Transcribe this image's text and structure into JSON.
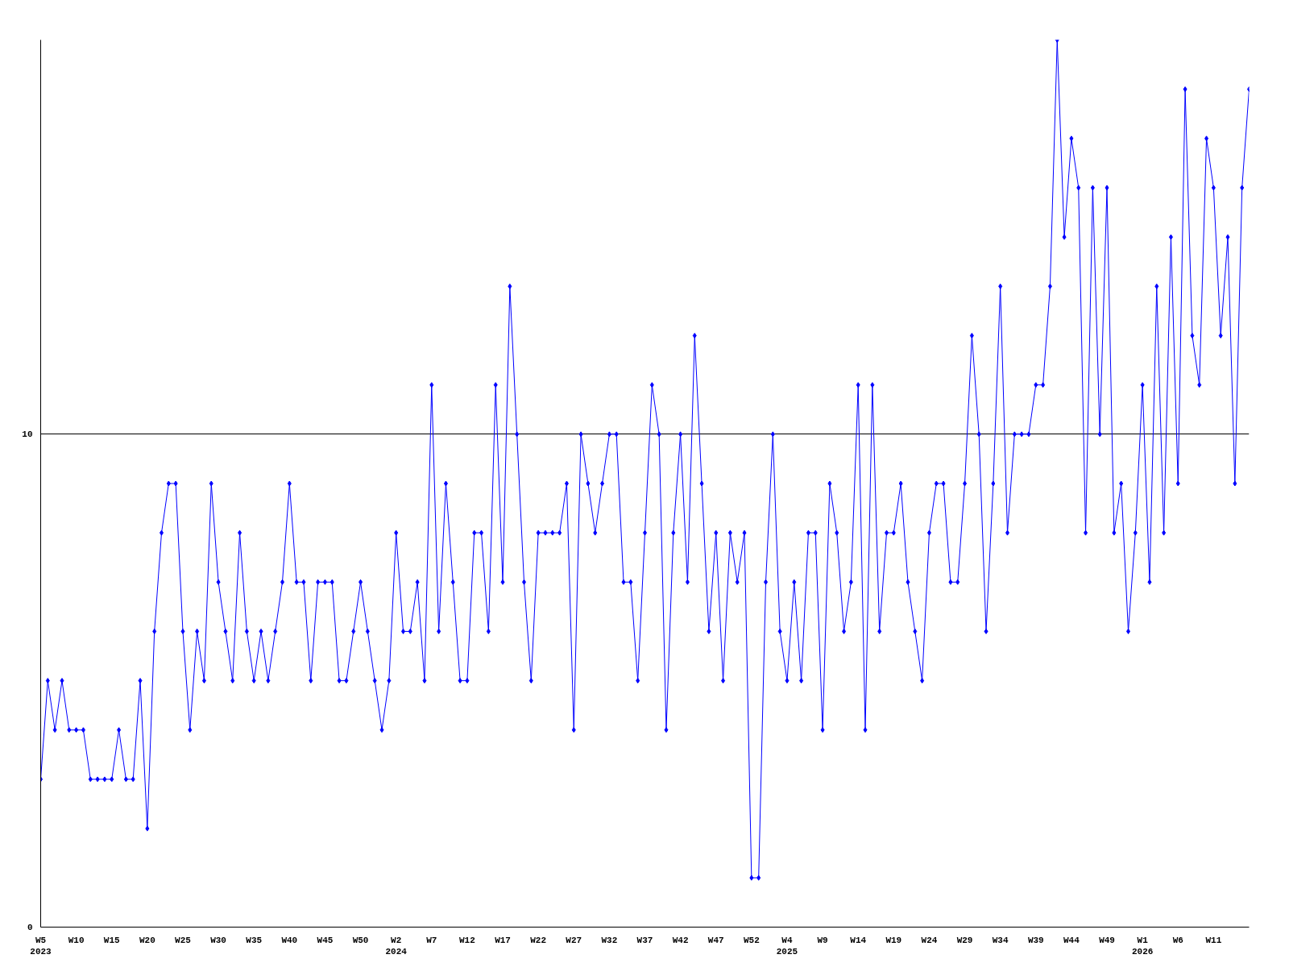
{
  "chart_data": {
    "type": "line",
    "categories": [
      "W5\n2023",
      null,
      null,
      null,
      null,
      "W10",
      null,
      null,
      null,
      null,
      "W15",
      null,
      null,
      null,
      null,
      "W20",
      null,
      null,
      null,
      null,
      "W25",
      null,
      null,
      null,
      null,
      "W30",
      null,
      null,
      null,
      null,
      "W35",
      null,
      null,
      null,
      null,
      "W40",
      null,
      null,
      null,
      null,
      "W45",
      null,
      null,
      null,
      null,
      "W50",
      null,
      null,
      null,
      null,
      "W2\n2024",
      null,
      null,
      null,
      null,
      "W7",
      null,
      null,
      null,
      null,
      "W12",
      null,
      null,
      null,
      null,
      "W17",
      null,
      null,
      null,
      null,
      "W22",
      null,
      null,
      null,
      null,
      "W27",
      null,
      null,
      null,
      null,
      "W32",
      null,
      null,
      null,
      null,
      "W37",
      null,
      null,
      null,
      null,
      "W42",
      null,
      null,
      null,
      null,
      "W47",
      null,
      null,
      null,
      null,
      "W52",
      null,
      null,
      null,
      null,
      "W4\n2025",
      null,
      null,
      null,
      null,
      "W9",
      null,
      null,
      null,
      null,
      "W14",
      null,
      null,
      null,
      null,
      "W19",
      null,
      null,
      null,
      null,
      "W24",
      null,
      null,
      null,
      null,
      "W29",
      null,
      null,
      null,
      null,
      "W34",
      null,
      null,
      null,
      null,
      "W39",
      null,
      null,
      null,
      null,
      "W44",
      null,
      null,
      null,
      null,
      "W49",
      null,
      null,
      null,
      null,
      "W1\n2026",
      null,
      null,
      null,
      null,
      "W6",
      null,
      null,
      null,
      null,
      "W11",
      null,
      null,
      null,
      null,
      null
    ],
    "series": [
      {
        "color": "#0000ff",
        "values": [
          3,
          5,
          4,
          5,
          4,
          4,
          4,
          3,
          3,
          3,
          3,
          4,
          3,
          3,
          5,
          2,
          6,
          8,
          9,
          9,
          6,
          4,
          6,
          5,
          9,
          7,
          6,
          5,
          8,
          6,
          5,
          6,
          5,
          6,
          7,
          9,
          7,
          7,
          5,
          7,
          7,
          7,
          5,
          5,
          6,
          7,
          6,
          5,
          4,
          5,
          8,
          6,
          6,
          7,
          5,
          11,
          6,
          9,
          7,
          5,
          5,
          8,
          8,
          6,
          11,
          7,
          13,
          10,
          7,
          5,
          8,
          8,
          8,
          8,
          9,
          4,
          10,
          9,
          8,
          9,
          10,
          10,
          7,
          7,
          5,
          8,
          11,
          10,
          4,
          8,
          10,
          7,
          12,
          9,
          6,
          8,
          5,
          8,
          7,
          8,
          1,
          1,
          7,
          10,
          6,
          5,
          7,
          5,
          8,
          8,
          4,
          9,
          8,
          6,
          7,
          11,
          4,
          11,
          6,
          8,
          8,
          9,
          7,
          6,
          5,
          8,
          9,
          9,
          7,
          7,
          9,
          12,
          10,
          6,
          9,
          13,
          8,
          10,
          10,
          10,
          11,
          11,
          13,
          18,
          14,
          16,
          15,
          8,
          15,
          10,
          15,
          8,
          9,
          6,
          8,
          11,
          7,
          13,
          8,
          14,
          9,
          17,
          12,
          11,
          16,
          15,
          12,
          14,
          9,
          15,
          17
        ]
      }
    ],
    "ylim": [
      0,
      18
    ],
    "yticks": [
      0,
      10
    ],
    "grid": "y",
    "marker": "diamond",
    "line_style": "solid"
  }
}
